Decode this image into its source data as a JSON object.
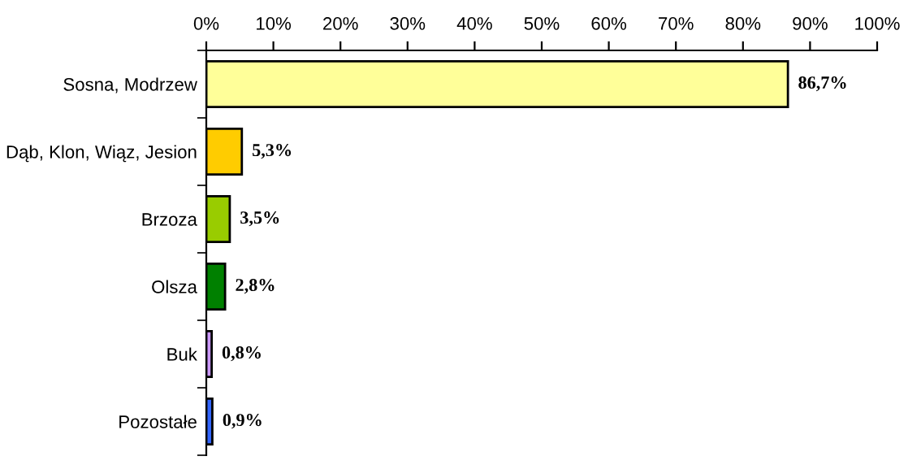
{
  "chart_data": {
    "type": "bar",
    "orientation": "horizontal",
    "categories": [
      "Sosna, Modrzew",
      "Dąb, Klon, Wiąz, Jesion",
      "Brzoza",
      "Olsza",
      "Buk",
      "Pozostałe"
    ],
    "values": [
      86.7,
      5.3,
      3.5,
      2.8,
      0.8,
      0.9
    ],
    "colors": [
      "#ffff99",
      "#ffcc00",
      "#99cc00",
      "#008000",
      "#cc99ff",
      "#3366ff"
    ],
    "value_labels": [
      "86,7%",
      "5,3%",
      "3,5%",
      "2,8%",
      "0,8%",
      "0,9%"
    ],
    "xlim": [
      0,
      100
    ],
    "xticks": [
      {
        "value": 0,
        "label": "0%"
      },
      {
        "value": 10,
        "label": "10%"
      },
      {
        "value": 20,
        "label": "20%"
      },
      {
        "value": 30,
        "label": "30%"
      },
      {
        "value": 40,
        "label": "40%"
      },
      {
        "value": 50,
        "label": "50%"
      },
      {
        "value": 60,
        "label": "60%"
      },
      {
        "value": 70,
        "label": "70%"
      },
      {
        "value": 80,
        "label": "80%"
      },
      {
        "value": 90,
        "label": "90%"
      },
      {
        "value": 100,
        "label": "100%"
      }
    ],
    "grid": false,
    "legend": false
  }
}
